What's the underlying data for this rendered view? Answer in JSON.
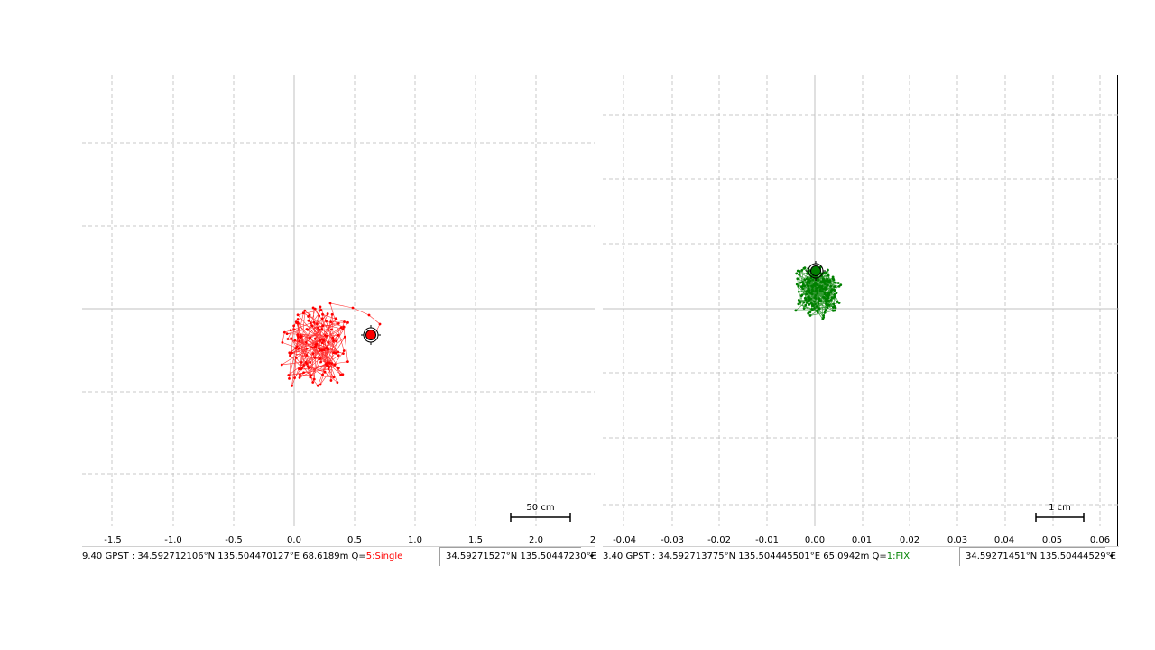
{
  "panels": [
    {
      "id": "single",
      "status_time_coords": "9.40 GPST : 34.592712106°N 135.504470127°E 68.6189m Q=",
      "quality": "5:Single",
      "cursor_coords": "34.59271527°N 135.50447230°E",
      "arrow": "✦",
      "scale_label": "50 cm",
      "color": "#ff0000",
      "x_ticks": [
        "-1.5",
        "-1.0",
        "-0.5",
        "0.0",
        "0.5",
        "1.0",
        "1.5",
        "2.0",
        "2"
      ]
    },
    {
      "id": "fix",
      "status_time_coords": "3.40 GPST : 34.592713775°N 135.504445501°E 65.0942m Q=",
      "quality": "1:FIX",
      "cursor_coords": "34.59271451°N 135.50444529°E",
      "arrow": "✦",
      "scale_label": "1 cm",
      "color": "#008000",
      "x_ticks": [
        "-0.04",
        "-0.03",
        "-0.02",
        "-0.01",
        "0.00",
        "0.01",
        "0.02",
        "0.03",
        "0.04",
        "0.05",
        "0.06"
      ]
    }
  ]
}
